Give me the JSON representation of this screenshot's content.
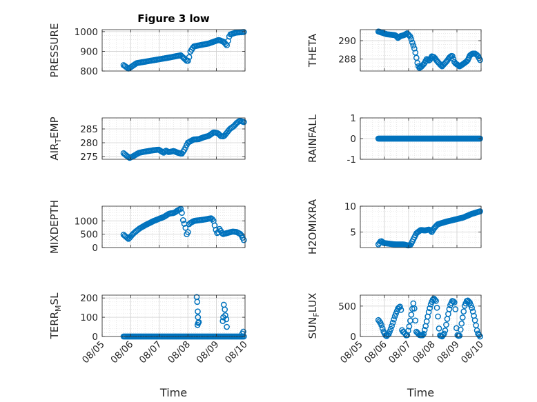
{
  "figure": {
    "title": "Figure 3 low",
    "marker_color": "#0072BD",
    "axis_color": "#262626",
    "grid_color": "#dcdcdc"
  },
  "chart_data": [
    {
      "type": "scatter",
      "id": "pressure",
      "title": "Figure 3 low",
      "ylabel": "PRESSURE",
      "xlabel": "",
      "xlim": [
        "08/05",
        "08/10"
      ],
      "ylim": [
        800,
        1010
      ],
      "yticks": [
        800,
        900,
        1000
      ],
      "ytick_labels": [
        "800",
        "900",
        "1000"
      ],
      "xticks": [
        "08/05",
        "08/06",
        "08/07",
        "08/08",
        "08/09",
        "08/10"
      ],
      "x_start": "08/05 18:00",
      "x_end": "08/09 23:00",
      "segments": [
        [
          0,
          830
        ],
        [
          0.5,
          812
        ],
        [
          1.3,
          840
        ],
        [
          4.5,
          868
        ],
        [
          5.7,
          880
        ],
        [
          6.3,
          852
        ],
        [
          6.5,
          852
        ],
        [
          6.6,
          893
        ],
        [
          7.0,
          925
        ],
        [
          8.5,
          940
        ],
        [
          9.5,
          958
        ],
        [
          10,
          948
        ],
        [
          10.3,
          930
        ],
        [
          10.6,
          985
        ],
        [
          11.2,
          995
        ],
        [
          12,
          998
        ]
      ],
      "grid": true
    },
    {
      "type": "scatter",
      "id": "theta",
      "ylabel": "THETA",
      "xlabel": "",
      "xlim": [
        "08/05",
        "08/10"
      ],
      "ylim": [
        286.7,
        291.2
      ],
      "yticks": [
        288,
        290
      ],
      "ytick_labels": [
        "288",
        "290"
      ],
      "xticks": [
        "08/05",
        "08/06",
        "08/07",
        "08/08",
        "08/09",
        "08/10"
      ],
      "x_start": "08/05 18:00",
      "x_end": "08/09 23:00",
      "segments": [
        [
          0,
          291.0
        ],
        [
          1.0,
          290.7
        ],
        [
          2.0,
          290.6
        ],
        [
          2.3,
          290.3
        ],
        [
          2.6,
          290.5
        ],
        [
          3.0,
          290.6
        ],
        [
          3.4,
          290.8
        ],
        [
          3.8,
          290.4
        ],
        [
          4.0,
          289.8
        ],
        [
          4.3,
          289.0
        ],
        [
          4.6,
          287.6
        ],
        [
          4.8,
          287.0
        ],
        [
          5.1,
          287.2
        ],
        [
          5.4,
          287.5
        ],
        [
          5.7,
          288.0
        ],
        [
          6.0,
          287.8
        ],
        [
          6.3,
          288.3
        ],
        [
          6.6,
          288.2
        ],
        [
          6.9,
          287.8
        ],
        [
          7.2,
          287.5
        ],
        [
          7.5,
          287.2
        ],
        [
          7.8,
          287.5
        ],
        [
          8.1,
          287.8
        ],
        [
          8.4,
          288.2
        ],
        [
          8.7,
          288.4
        ],
        [
          9.0,
          287.6
        ],
        [
          9.3,
          287.4
        ],
        [
          9.6,
          287.2
        ],
        [
          9.9,
          287.4
        ],
        [
          10.2,
          287.6
        ],
        [
          10.5,
          287.8
        ],
        [
          10.8,
          288.4
        ],
        [
          11.1,
          288.6
        ],
        [
          11.4,
          288.6
        ],
        [
          11.7,
          288.4
        ],
        [
          12,
          287.9
        ]
      ],
      "grid": true
    },
    {
      "type": "scatter",
      "id": "airtemp",
      "ylabel": "AIR_TEMP",
      "xlabel": "",
      "xlim": [
        "08/05",
        "08/10"
      ],
      "ylim": [
        274,
        289
      ],
      "yticks": [
        275,
        280,
        285
      ],
      "ytick_labels": [
        "275",
        "280",
        "285"
      ],
      "xticks": [
        "08/05",
        "08/06",
        "08/07",
        "08/08",
        "08/09",
        "08/10"
      ],
      "x_start": "08/05 18:00",
      "x_end": "08/09 23:00",
      "segments": [
        [
          0,
          276.2
        ],
        [
          0.3,
          275.3
        ],
        [
          0.6,
          274.5
        ],
        [
          1.0,
          275.2
        ],
        [
          1.5,
          276.3
        ],
        [
          2.0,
          276.7
        ],
        [
          3.0,
          277.3
        ],
        [
          3.5,
          277.5
        ],
        [
          3.8,
          276.8
        ],
        [
          4.0,
          276.4
        ],
        [
          4.2,
          277.2
        ],
        [
          4.5,
          276.6
        ],
        [
          5.0,
          277.0
        ],
        [
          5.4,
          276.4
        ],
        [
          5.8,
          276.0
        ],
        [
          6.1,
          277.6
        ],
        [
          6.4,
          280.0
        ],
        [
          7.0,
          281.2
        ],
        [
          7.5,
          281.3
        ],
        [
          8.0,
          282.0
        ],
        [
          8.5,
          282.5
        ],
        [
          9.0,
          283.8
        ],
        [
          9.4,
          283.5
        ],
        [
          9.7,
          282.4
        ],
        [
          10.0,
          282.3
        ],
        [
          10.3,
          283.6
        ],
        [
          10.6,
          285.0
        ],
        [
          11.0,
          286.0
        ],
        [
          11.3,
          287.2
        ],
        [
          11.6,
          288.0
        ],
        [
          12,
          287.5
        ]
      ],
      "grid": true
    },
    {
      "type": "scatter",
      "id": "rainfall",
      "ylabel": "RAINFALL",
      "xlabel": "",
      "xlim": [
        "08/05",
        "08/10"
      ],
      "ylim": [
        -1,
        1
      ],
      "yticks": [
        -1,
        0,
        1
      ],
      "ytick_labels": [
        "-1",
        "0",
        "1"
      ],
      "xticks": [
        "08/05",
        "08/06",
        "08/07",
        "08/08",
        "08/09",
        "08/10"
      ],
      "x_start": "08/05 18:00",
      "x_end": "08/09 23:00",
      "segments": [
        [
          0,
          0
        ],
        [
          12,
          0
        ]
      ],
      "grid": true
    },
    {
      "type": "scatter",
      "id": "mixdepth",
      "ylabel": "MIXDEPTH",
      "xlabel": "",
      "xlim": [
        "08/05",
        "08/10"
      ],
      "ylim": [
        0,
        1550
      ],
      "yticks": [
        0,
        500,
        1000
      ],
      "ytick_labels": [
        "0",
        "500",
        "1000"
      ],
      "xticks": [
        "08/05",
        "08/06",
        "08/07",
        "08/08",
        "08/09",
        "08/10"
      ],
      "x_start": "08/05 18:00",
      "x_end": "08/09 23:00",
      "segments": [
        [
          0,
          480
        ],
        [
          0.5,
          320
        ],
        [
          0.9,
          500
        ],
        [
          1.2,
          600
        ],
        [
          1.6,
          720
        ],
        [
          2.2,
          850
        ],
        [
          3.0,
          1000
        ],
        [
          4.0,
          1150
        ],
        [
          4.5,
          1270
        ],
        [
          5.0,
          1300
        ],
        [
          5.4,
          1400
        ],
        [
          5.7,
          1460
        ],
        [
          5.9,
          1000
        ],
        [
          6.1,
          800
        ],
        [
          6.3,
          400
        ],
        [
          6.5,
          900
        ],
        [
          7.0,
          1000
        ],
        [
          8.0,
          1050
        ],
        [
          8.7,
          1100
        ],
        [
          8.9,
          1000
        ],
        [
          9.1,
          700
        ],
        [
          9.3,
          500
        ],
        [
          9.5,
          700
        ],
        [
          9.8,
          500
        ],
        [
          10.3,
          550
        ],
        [
          10.8,
          600
        ],
        [
          11.2,
          580
        ],
        [
          11.6,
          500
        ],
        [
          11.9,
          280
        ]
      ],
      "grid": true
    },
    {
      "type": "scatter",
      "id": "h2omixra",
      "ylabel": "H2OMIXRA",
      "xlabel": "",
      "xlim": [
        "08/05",
        "08/10"
      ],
      "ylim": [
        2,
        10
      ],
      "yticks": [
        5,
        10
      ],
      "ytick_labels": [
        "5",
        "10"
      ],
      "xticks": [
        "08/05",
        "08/06",
        "08/07",
        "08/08",
        "08/09",
        "08/10"
      ],
      "x_start": "08/05 18:00",
      "x_end": "08/09 23:00",
      "segments": [
        [
          0,
          2.6
        ],
        [
          0.3,
          3.3
        ],
        [
          0.6,
          2.9
        ],
        [
          1.0,
          2.8
        ],
        [
          2.0,
          2.6
        ],
        [
          3.0,
          2.6
        ],
        [
          3.5,
          2.4
        ],
        [
          3.8,
          2.5
        ],
        [
          4.1,
          3.5
        ],
        [
          4.5,
          4.8
        ],
        [
          5.0,
          5.4
        ],
        [
          5.5,
          5.3
        ],
        [
          6.0,
          5.5
        ],
        [
          6.3,
          5.0
        ],
        [
          6.6,
          5.8
        ],
        [
          7.0,
          6.5
        ],
        [
          8.0,
          7.0
        ],
        [
          9.0,
          7.4
        ],
        [
          10.0,
          7.8
        ],
        [
          11.0,
          8.5
        ],
        [
          12,
          9.0
        ]
      ],
      "grid": true
    },
    {
      "type": "scatter",
      "id": "terrmsl",
      "ylabel": "TERR_MSL",
      "xlabel": "Time",
      "xlim": [
        "08/05",
        "08/10"
      ],
      "ylim": [
        0,
        215
      ],
      "yticks": [
        0,
        100,
        200
      ],
      "ytick_labels": [
        "0",
        "100",
        "200"
      ],
      "xticks": [
        "08/05",
        "08/06",
        "08/07",
        "08/08",
        "08/09",
        "08/10"
      ],
      "x_start": "08/05 18:00",
      "x_end": "08/09 23:00",
      "segments": [
        [
          0,
          0
        ],
        [
          12,
          0
        ]
      ],
      "extra_points": [
        [
          7.3,
          205
        ],
        [
          7.35,
          180
        ],
        [
          7.4,
          130
        ],
        [
          7.42,
          100
        ],
        [
          7.45,
          70
        ],
        [
          7.38,
          60
        ],
        [
          7.5,
          75
        ],
        [
          10.0,
          165
        ],
        [
          10.1,
          140
        ],
        [
          9.95,
          100
        ],
        [
          10.15,
          110
        ],
        [
          10.25,
          90
        ],
        [
          9.9,
          80
        ],
        [
          10.3,
          50
        ],
        [
          11.85,
          15
        ],
        [
          11.95,
          25
        ]
      ],
      "grid": true
    },
    {
      "type": "scatter",
      "id": "sunflux",
      "ylabel": "SUN_FLUX",
      "xlabel": "Time",
      "xlim": [
        "08/05",
        "08/10"
      ],
      "ylim": [
        0,
        680
      ],
      "yticks": [
        0,
        500
      ],
      "ytick_labels": [
        "0",
        "500"
      ],
      "xticks": [
        "08/05",
        "08/06",
        "08/07",
        "08/08",
        "08/09",
        "08/10"
      ],
      "x_start": "08/05 18:00",
      "x_end": "08/09 23:00",
      "segments": [
        [
          0,
          270
        ],
        [
          0.3,
          210
        ],
        [
          0.6,
          80
        ],
        [
          0.9,
          0
        ],
        [
          1.2,
          40
        ],
        [
          1.5,
          150
        ],
        [
          1.9,
          330
        ],
        [
          2.3,
          470
        ],
        [
          2.6,
          500
        ],
        [
          2.75,
          80
        ],
        [
          3.0,
          70
        ],
        [
          3.3,
          0
        ],
        [
          3.6,
          180
        ],
        [
          3.9,
          430
        ],
        [
          4.1,
          580
        ],
        [
          4.4,
          80
        ],
        [
          4.8,
          20
        ],
        [
          5.2,
          20
        ],
        [
          5.5,
          180
        ],
        [
          5.8,
          380
        ],
        [
          6.1,
          540
        ],
        [
          6.4,
          630
        ],
        [
          6.7,
          580
        ],
        [
          6.9,
          350
        ],
        [
          7.1,
          20
        ],
        [
          7.4,
          0
        ],
        [
          7.7,
          60
        ],
        [
          8.0,
          300
        ],
        [
          8.3,
          500
        ],
        [
          8.6,
          590
        ],
        [
          8.9,
          550
        ],
        [
          9.1,
          30
        ],
        [
          9.4,
          0
        ],
        [
          9.7,
          250
        ],
        [
          10.0,
          500
        ],
        [
          10.3,
          600
        ],
        [
          10.6,
          560
        ],
        [
          10.9,
          450
        ],
        [
          11.2,
          270
        ],
        [
          11.5,
          60
        ],
        [
          11.8,
          0
        ]
      ],
      "grid": true
    }
  ]
}
